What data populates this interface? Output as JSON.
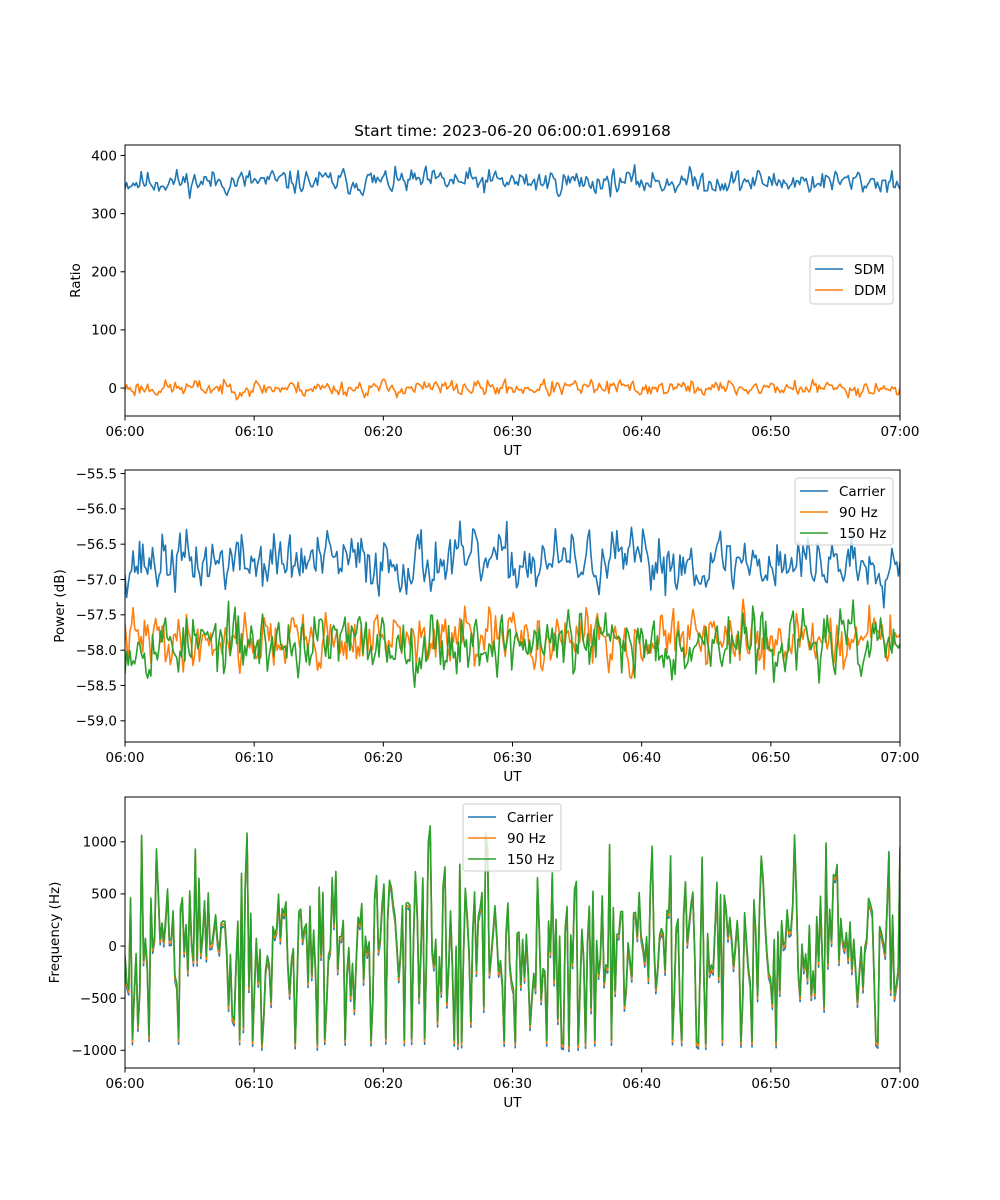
{
  "chart_data": [
    {
      "type": "line",
      "title": "Start time: 2023-06-20 06:00:01.699168",
      "xlabel": "UT",
      "ylabel": "Ratio",
      "xlim": [
        0,
        60
      ],
      "ylim": [
        -48,
        418
      ],
      "x_tick_labels": [
        "06:00",
        "06:10",
        "06:20",
        "06:30",
        "06:40",
        "06:50",
        "07:00"
      ],
      "y_ticks": [
        0,
        100,
        200,
        300,
        400
      ],
      "y_tick_labels": [
        "0",
        "100",
        "200",
        "300",
        "400"
      ],
      "legend_position": "center-right",
      "series": [
        {
          "name": "SDM",
          "color": "#1f77b4",
          "mean": 355,
          "amp": 15,
          "seed": 11
        },
        {
          "name": "DDM",
          "color": "#ff7f0e",
          "mean": 0,
          "amp": 10,
          "seed": 23
        }
      ]
    },
    {
      "type": "line",
      "title": "",
      "xlabel": "UT",
      "ylabel": "Power (dB)",
      "xlim": [
        0,
        60
      ],
      "ylim": [
        -59.3,
        -55.45
      ],
      "x_tick_labels": [
        "06:00",
        "06:10",
        "06:20",
        "06:30",
        "06:40",
        "06:50",
        "07:00"
      ],
      "y_ticks": [
        -59.0,
        -58.5,
        -58.0,
        -57.5,
        -57.0,
        -56.5,
        -56.0,
        -55.5
      ],
      "y_tick_labels": [
        "−59.0",
        "−58.5",
        "−58.0",
        "−57.5",
        "−57.0",
        "−56.5",
        "−56.0",
        "−55.5"
      ],
      "legend_position": "upper-right",
      "series": [
        {
          "name": "Carrier",
          "color": "#1f77b4",
          "mean": -56.75,
          "amp": 0.3,
          "seed": 37
        },
        {
          "name": "90 Hz",
          "color": "#ff7f0e",
          "mean": -57.85,
          "amp": 0.28,
          "seed": 41
        },
        {
          "name": "150 Hz",
          "color": "#2ca02c",
          "mean": -57.9,
          "amp": 0.32,
          "seed": 53
        }
      ]
    },
    {
      "type": "line",
      "title": "",
      "xlabel": "UT",
      "ylabel": "Frequency (Hz)",
      "xlim": [
        0,
        60
      ],
      "ylim": [
        -1170,
        1430
      ],
      "x_tick_labels": [
        "06:00",
        "06:10",
        "06:20",
        "06:30",
        "06:40",
        "06:50",
        "07:00"
      ],
      "y_ticks": [
        -1000,
        -500,
        0,
        500,
        1000
      ],
      "y_tick_labels": [
        "−1000",
        "−500",
        "0",
        "500",
        "1000"
      ],
      "legend_position": "upper-center",
      "series": [
        {
          "name": "Carrier",
          "color": "#1f77b4",
          "mean": 0,
          "amp": 420,
          "seed": 67
        },
        {
          "name": "90 Hz",
          "color": "#ff7f0e",
          "mean": 0,
          "amp": 420,
          "seed": 67
        },
        {
          "name": "150 Hz",
          "color": "#2ca02c",
          "mean": 0,
          "amp": 420,
          "seed": 67
        }
      ]
    }
  ]
}
